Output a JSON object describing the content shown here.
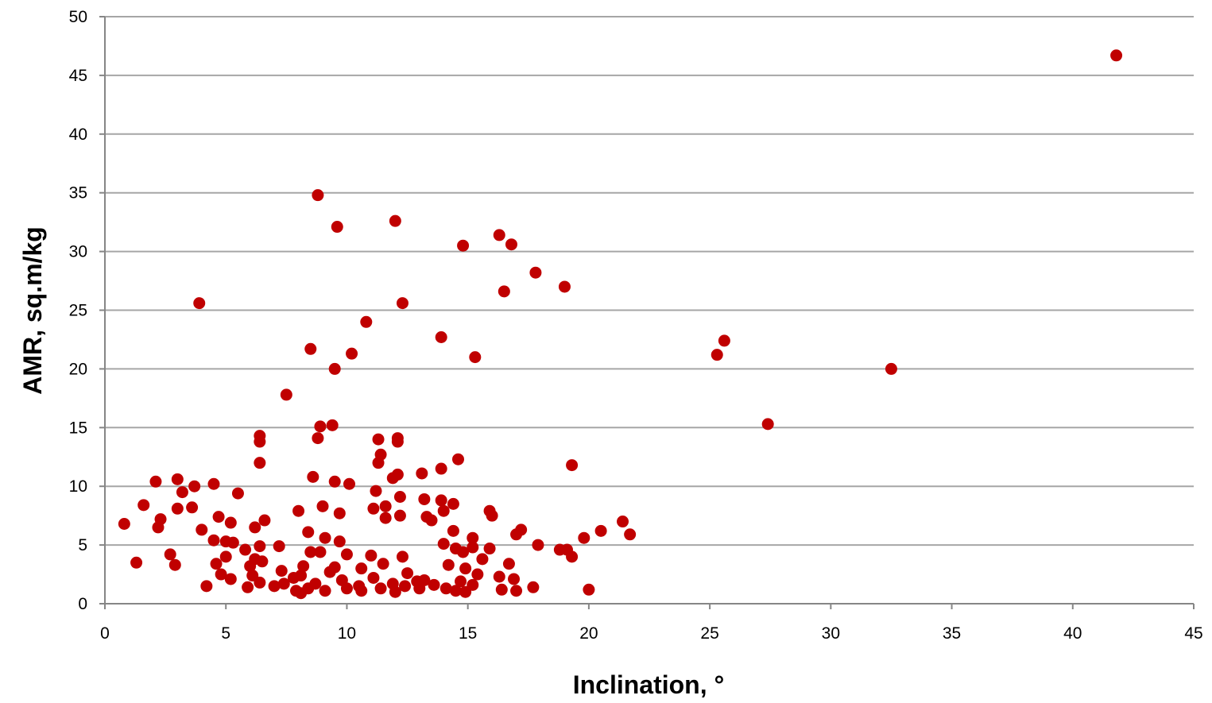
{
  "chart_data": {
    "type": "scatter",
    "xlabel": "Inclination, °",
    "ylabel": "AMR, sq.m/kg",
    "xlim": [
      0,
      45
    ],
    "ylim": [
      0,
      50
    ],
    "xticks": [
      0,
      5,
      10,
      15,
      20,
      25,
      30,
      35,
      40,
      45
    ],
    "yticks": [
      0,
      5,
      10,
      15,
      20,
      25,
      30,
      35,
      40,
      45,
      50
    ],
    "grid": "horizontal",
    "legend": "none",
    "colors": {
      "marker": "#c00000",
      "grid": "#a6a6a6",
      "axis": "#868686"
    },
    "series": [
      {
        "points": [
          [
            41.8,
            46.7
          ],
          [
            8.8,
            34.8
          ],
          [
            12.0,
            32.6
          ],
          [
            9.6,
            32.1
          ],
          [
            16.3,
            31.4
          ],
          [
            14.8,
            30.5
          ],
          [
            16.8,
            30.6
          ],
          [
            17.8,
            28.2
          ],
          [
            19.0,
            27.0
          ],
          [
            16.5,
            26.6
          ],
          [
            3.9,
            25.6
          ],
          [
            12.3,
            25.6
          ],
          [
            10.8,
            24.0
          ],
          [
            13.9,
            22.7
          ],
          [
            25.6,
            22.4
          ],
          [
            8.5,
            21.7
          ],
          [
            10.2,
            21.3
          ],
          [
            25.3,
            21.2
          ],
          [
            15.3,
            21.0
          ],
          [
            9.5,
            20.0
          ],
          [
            32.5,
            20.0
          ],
          [
            7.5,
            17.8
          ],
          [
            27.4,
            15.3
          ],
          [
            9.4,
            15.2
          ],
          [
            8.9,
            15.1
          ],
          [
            6.4,
            14.3
          ],
          [
            8.8,
            14.1
          ],
          [
            12.1,
            14.1
          ],
          [
            11.3,
            14.0
          ],
          [
            12.1,
            13.8
          ],
          [
            6.4,
            13.8
          ],
          [
            11.4,
            12.7
          ],
          [
            14.6,
            12.3
          ],
          [
            6.4,
            12.0
          ],
          [
            11.3,
            12.0
          ],
          [
            19.3,
            11.8
          ],
          [
            13.9,
            11.5
          ],
          [
            13.1,
            11.1
          ],
          [
            12.1,
            11.0
          ],
          [
            8.6,
            10.8
          ],
          [
            11.9,
            10.7
          ],
          [
            3.0,
            10.6
          ],
          [
            2.1,
            10.4
          ],
          [
            9.5,
            10.4
          ],
          [
            4.5,
            10.2
          ],
          [
            10.1,
            10.2
          ],
          [
            3.7,
            10.0
          ],
          [
            11.2,
            9.6
          ],
          [
            3.2,
            9.5
          ],
          [
            5.5,
            9.4
          ],
          [
            12.2,
            9.1
          ],
          [
            13.2,
            8.9
          ],
          [
            13.9,
            8.8
          ],
          [
            14.4,
            8.5
          ],
          [
            1.6,
            8.4
          ],
          [
            9.0,
            8.3
          ],
          [
            11.6,
            8.3
          ],
          [
            3.6,
            8.2
          ],
          [
            3.0,
            8.1
          ],
          [
            11.1,
            8.1
          ],
          [
            8.0,
            7.9
          ],
          [
            15.9,
            7.9
          ],
          [
            14.0,
            7.9
          ],
          [
            9.7,
            7.7
          ],
          [
            16.0,
            7.5
          ],
          [
            12.2,
            7.5
          ],
          [
            4.7,
            7.4
          ],
          [
            13.3,
            7.4
          ],
          [
            11.6,
            7.3
          ],
          [
            2.3,
            7.2
          ],
          [
            6.6,
            7.1
          ],
          [
            13.5,
            7.1
          ],
          [
            21.4,
            7.0
          ],
          [
            5.2,
            6.9
          ],
          [
            0.8,
            6.8
          ],
          [
            2.2,
            6.5
          ],
          [
            6.2,
            6.5
          ],
          [
            4.0,
            6.3
          ],
          [
            17.2,
            6.3
          ],
          [
            8.4,
            6.1
          ],
          [
            20.5,
            6.2
          ],
          [
            14.4,
            6.2
          ],
          [
            21.7,
            5.9
          ],
          [
            17.0,
            5.9
          ],
          [
            15.2,
            5.6
          ],
          [
            9.1,
            5.6
          ],
          [
            19.8,
            5.6
          ],
          [
            4.5,
            5.4
          ],
          [
            5.0,
            5.3
          ],
          [
            9.7,
            5.3
          ],
          [
            5.3,
            5.2
          ],
          [
            14.0,
            5.1
          ],
          [
            17.9,
            5.0
          ],
          [
            6.4,
            4.9
          ],
          [
            7.2,
            4.9
          ],
          [
            15.2,
            4.8
          ],
          [
            14.5,
            4.7
          ],
          [
            15.9,
            4.7
          ],
          [
            18.8,
            4.6
          ],
          [
            5.8,
            4.6
          ],
          [
            19.1,
            4.6
          ],
          [
            8.5,
            4.4
          ],
          [
            14.8,
            4.4
          ],
          [
            8.9,
            4.4
          ],
          [
            10.0,
            4.2
          ],
          [
            11.0,
            4.1
          ],
          [
            12.3,
            4.0
          ],
          [
            2.7,
            4.2
          ],
          [
            5.0,
            4.0
          ],
          [
            19.3,
            4.0
          ],
          [
            6.2,
            3.8
          ],
          [
            15.6,
            3.8
          ],
          [
            6.5,
            3.6
          ],
          [
            1.3,
            3.5
          ],
          [
            16.7,
            3.4
          ],
          [
            2.9,
            3.3
          ],
          [
            4.6,
            3.4
          ],
          [
            11.5,
            3.4
          ],
          [
            14.2,
            3.3
          ],
          [
            6.0,
            3.2
          ],
          [
            8.2,
            3.2
          ],
          [
            9.5,
            3.1
          ],
          [
            10.6,
            3.0
          ],
          [
            14.9,
            3.0
          ],
          [
            7.3,
            2.8
          ],
          [
            9.3,
            2.7
          ],
          [
            12.5,
            2.6
          ],
          [
            4.8,
            2.5
          ],
          [
            15.4,
            2.5
          ],
          [
            6.1,
            2.4
          ],
          [
            8.1,
            2.4
          ],
          [
            16.3,
            2.3
          ],
          [
            11.1,
            2.2
          ],
          [
            7.8,
            2.2
          ],
          [
            5.2,
            2.1
          ],
          [
            16.9,
            2.1
          ],
          [
            13.2,
            2.0
          ],
          [
            9.8,
            2.0
          ],
          [
            12.9,
            1.9
          ],
          [
            14.7,
            1.9
          ],
          [
            6.4,
            1.8
          ],
          [
            7.4,
            1.7
          ],
          [
            8.7,
            1.7
          ],
          [
            11.9,
            1.7
          ],
          [
            13.6,
            1.6
          ],
          [
            15.2,
            1.6
          ],
          [
            4.2,
            1.5
          ],
          [
            7.0,
            1.5
          ],
          [
            10.5,
            1.5
          ],
          [
            12.4,
            1.5
          ],
          [
            17.7,
            1.4
          ],
          [
            5.9,
            1.4
          ],
          [
            8.4,
            1.3
          ],
          [
            10.0,
            1.3
          ],
          [
            11.4,
            1.3
          ],
          [
            13.0,
            1.3
          ],
          [
            14.1,
            1.3
          ],
          [
            16.4,
            1.2
          ],
          [
            20.0,
            1.2
          ],
          [
            17.0,
            1.1
          ],
          [
            7.9,
            1.1
          ],
          [
            14.5,
            1.1
          ],
          [
            9.1,
            1.1
          ],
          [
            10.6,
            1.1
          ],
          [
            12.0,
            1.0
          ],
          [
            8.1,
            0.9
          ],
          [
            14.9,
            1.0
          ]
        ]
      }
    ]
  }
}
